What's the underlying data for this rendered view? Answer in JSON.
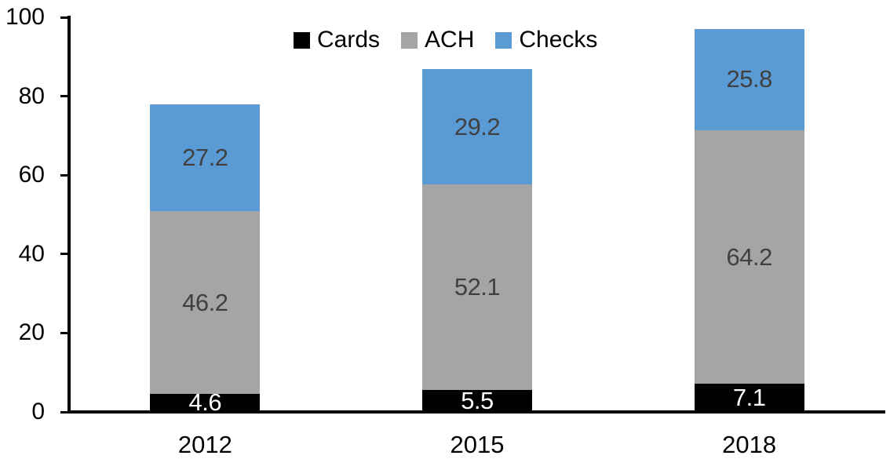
{
  "chart_data": {
    "type": "bar",
    "stacked": true,
    "title": "",
    "xlabel": "",
    "ylabel": "",
    "categories": [
      "2012",
      "2015",
      "2018"
    ],
    "series": [
      {
        "name": "Cards",
        "color": "#000000",
        "label_color": "#FFFFFF",
        "values": [
          4.6,
          5.5,
          7.1
        ]
      },
      {
        "name": "ACH",
        "color": "#A5A5A5",
        "label_color": "#404040",
        "values": [
          46.2,
          52.1,
          64.2
        ]
      },
      {
        "name": "Checks",
        "color": "#5B9BD5",
        "label_color": "#404040",
        "values": [
          27.2,
          29.2,
          25.8
        ]
      }
    ],
    "totals": [
      78.0,
      86.8,
      97.1
    ],
    "ylim": [
      0,
      100
    ],
    "yticks": [
      0,
      20,
      40,
      60,
      80,
      100
    ],
    "grid": false,
    "legend_position": "top",
    "axis_color": "#000000",
    "text_color": "#000000",
    "background_color": "#FFFFFF"
  }
}
